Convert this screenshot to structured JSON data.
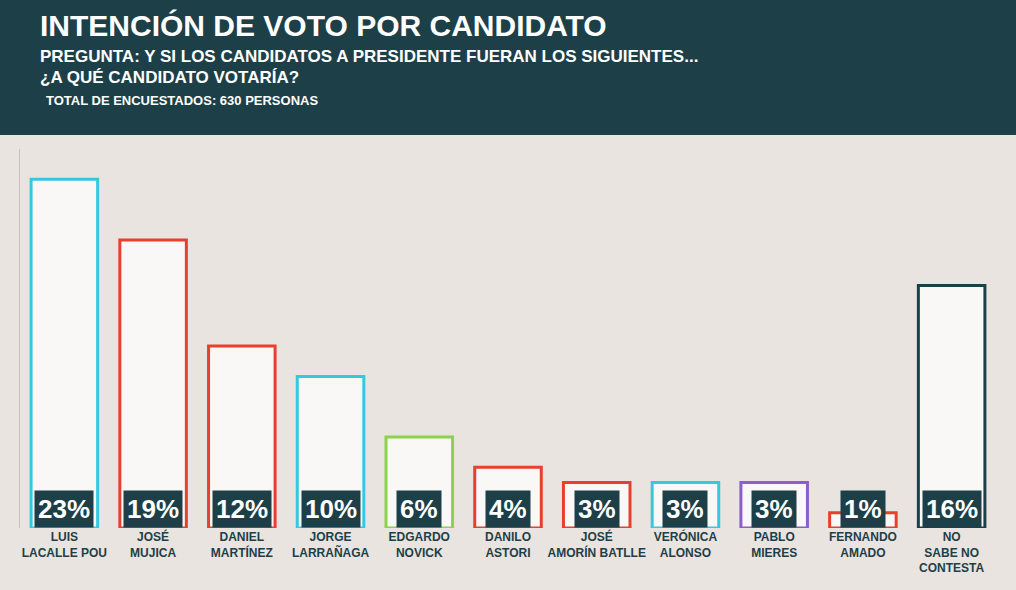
{
  "chart_data": {
    "type": "bar",
    "title": "INTENCIÓN DE VOTO POR CANDIDATO",
    "subtitle": "PREGUNTA: Y SI LOS CANDIDATOS A PRESIDENTE FUERAN LOS SIGUIENTES... ¿A QUÉ CANDIDATO VOTARÍA?",
    "annotations": [
      "TOTAL DE ENCUESTADOS: 630 PERSONAS"
    ],
    "categories": [
      "LUIS LACALLE POU",
      "JOSÉ MUJICA",
      "DANIEL MARTÍNEZ",
      "JORGE LARRAÑAGA",
      "EDGARDO NOVICK",
      "DANILO ASTORI",
      "JOSÉ AMORÍN BATLLE",
      "VERÓNICA ALONSO",
      "PABLO MIERES",
      "FERNANDO AMADO",
      "NO SABE NO CONTESTA"
    ],
    "values": [
      23,
      19,
      12,
      10,
      6,
      4,
      3,
      3,
      3,
      1,
      16
    ],
    "value_labels": [
      "23%",
      "19%",
      "12%",
      "10%",
      "6%",
      "4%",
      "3%",
      "3%",
      "3%",
      "1%",
      "16%"
    ],
    "colors": [
      "#35c9e0",
      "#e8402e",
      "#e8402e",
      "#35c9e0",
      "#8ed14a",
      "#e8402e",
      "#e8402e",
      "#35c9e0",
      "#8b5fc9",
      "#e8402e",
      "#1d3f48"
    ],
    "ylim": [
      0,
      25
    ],
    "data_labels": true,
    "tick_labels": "x",
    "grid": false
  }
}
